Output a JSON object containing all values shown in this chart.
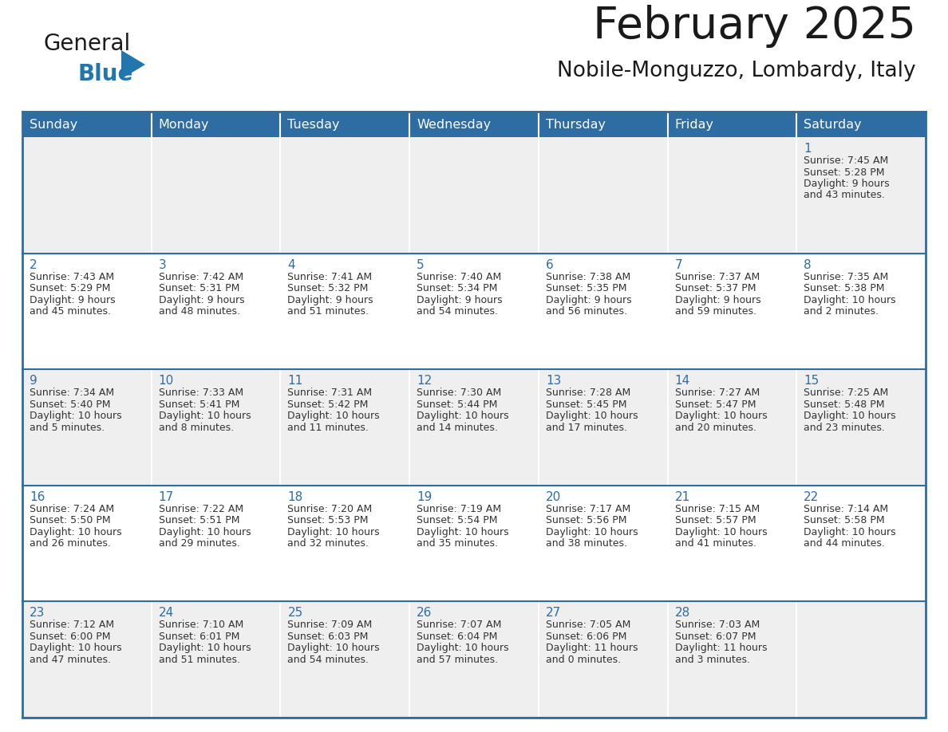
{
  "title": "February 2025",
  "subtitle": "Nobile-Monguzzo, Lombardy, Italy",
  "header_color": "#2E6DA4",
  "header_text_color": "#FFFFFF",
  "cell_bg_even": "#EFEFEF",
  "cell_bg_odd": "#FFFFFF",
  "border_color": "#2E6DA4",
  "text_color": "#333333",
  "day_num_color": "#2E6DA4",
  "day_headers": [
    "Sunday",
    "Monday",
    "Tuesday",
    "Wednesday",
    "Thursday",
    "Friday",
    "Saturday"
  ],
  "logo_color1": "#1a1a1a",
  "logo_color2": "#2176AE",
  "calendar": [
    [
      null,
      null,
      null,
      null,
      null,
      null,
      {
        "day": 1,
        "sunrise": "7:45 AM",
        "sunset": "5:28 PM",
        "daylight": "9 hours",
        "daylight2": "and 43 minutes."
      }
    ],
    [
      {
        "day": 2,
        "sunrise": "7:43 AM",
        "sunset": "5:29 PM",
        "daylight": "9 hours",
        "daylight2": "and 45 minutes."
      },
      {
        "day": 3,
        "sunrise": "7:42 AM",
        "sunset": "5:31 PM",
        "daylight": "9 hours",
        "daylight2": "and 48 minutes."
      },
      {
        "day": 4,
        "sunrise": "7:41 AM",
        "sunset": "5:32 PM",
        "daylight": "9 hours",
        "daylight2": "and 51 minutes."
      },
      {
        "day": 5,
        "sunrise": "7:40 AM",
        "sunset": "5:34 PM",
        "daylight": "9 hours",
        "daylight2": "and 54 minutes."
      },
      {
        "day": 6,
        "sunrise": "7:38 AM",
        "sunset": "5:35 PM",
        "daylight": "9 hours",
        "daylight2": "and 56 minutes."
      },
      {
        "day": 7,
        "sunrise": "7:37 AM",
        "sunset": "5:37 PM",
        "daylight": "9 hours",
        "daylight2": "and 59 minutes."
      },
      {
        "day": 8,
        "sunrise": "7:35 AM",
        "sunset": "5:38 PM",
        "daylight": "10 hours",
        "daylight2": "and 2 minutes."
      }
    ],
    [
      {
        "day": 9,
        "sunrise": "7:34 AM",
        "sunset": "5:40 PM",
        "daylight": "10 hours",
        "daylight2": "and 5 minutes."
      },
      {
        "day": 10,
        "sunrise": "7:33 AM",
        "sunset": "5:41 PM",
        "daylight": "10 hours",
        "daylight2": "and 8 minutes."
      },
      {
        "day": 11,
        "sunrise": "7:31 AM",
        "sunset": "5:42 PM",
        "daylight": "10 hours",
        "daylight2": "and 11 minutes."
      },
      {
        "day": 12,
        "sunrise": "7:30 AM",
        "sunset": "5:44 PM",
        "daylight": "10 hours",
        "daylight2": "and 14 minutes."
      },
      {
        "day": 13,
        "sunrise": "7:28 AM",
        "sunset": "5:45 PM",
        "daylight": "10 hours",
        "daylight2": "and 17 minutes."
      },
      {
        "day": 14,
        "sunrise": "7:27 AM",
        "sunset": "5:47 PM",
        "daylight": "10 hours",
        "daylight2": "and 20 minutes."
      },
      {
        "day": 15,
        "sunrise": "7:25 AM",
        "sunset": "5:48 PM",
        "daylight": "10 hours",
        "daylight2": "and 23 minutes."
      }
    ],
    [
      {
        "day": 16,
        "sunrise": "7:24 AM",
        "sunset": "5:50 PM",
        "daylight": "10 hours",
        "daylight2": "and 26 minutes."
      },
      {
        "day": 17,
        "sunrise": "7:22 AM",
        "sunset": "5:51 PM",
        "daylight": "10 hours",
        "daylight2": "and 29 minutes."
      },
      {
        "day": 18,
        "sunrise": "7:20 AM",
        "sunset": "5:53 PM",
        "daylight": "10 hours",
        "daylight2": "and 32 minutes."
      },
      {
        "day": 19,
        "sunrise": "7:19 AM",
        "sunset": "5:54 PM",
        "daylight": "10 hours",
        "daylight2": "and 35 minutes."
      },
      {
        "day": 20,
        "sunrise": "7:17 AM",
        "sunset": "5:56 PM",
        "daylight": "10 hours",
        "daylight2": "and 38 minutes."
      },
      {
        "day": 21,
        "sunrise": "7:15 AM",
        "sunset": "5:57 PM",
        "daylight": "10 hours",
        "daylight2": "and 41 minutes."
      },
      {
        "day": 22,
        "sunrise": "7:14 AM",
        "sunset": "5:58 PM",
        "daylight": "10 hours",
        "daylight2": "and 44 minutes."
      }
    ],
    [
      {
        "day": 23,
        "sunrise": "7:12 AM",
        "sunset": "6:00 PM",
        "daylight": "10 hours",
        "daylight2": "and 47 minutes."
      },
      {
        "day": 24,
        "sunrise": "7:10 AM",
        "sunset": "6:01 PM",
        "daylight": "10 hours",
        "daylight2": "and 51 minutes."
      },
      {
        "day": 25,
        "sunrise": "7:09 AM",
        "sunset": "6:03 PM",
        "daylight": "10 hours",
        "daylight2": "and 54 minutes."
      },
      {
        "day": 26,
        "sunrise": "7:07 AM",
        "sunset": "6:04 PM",
        "daylight": "10 hours",
        "daylight2": "and 57 minutes."
      },
      {
        "day": 27,
        "sunrise": "7:05 AM",
        "sunset": "6:06 PM",
        "daylight": "11 hours",
        "daylight2": "and 0 minutes."
      },
      {
        "day": 28,
        "sunrise": "7:03 AM",
        "sunset": "6:07 PM",
        "daylight": "11 hours",
        "daylight2": "and 3 minutes."
      },
      null
    ]
  ]
}
